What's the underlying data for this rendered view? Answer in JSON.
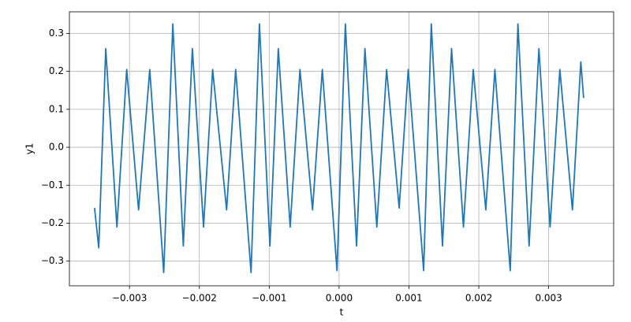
{
  "chart_data": {
    "type": "line",
    "x_label": "t",
    "y_label": "y1",
    "x": [
      -0.0035,
      -0.00344,
      -0.00334,
      -0.00318,
      -0.00304,
      -0.00287,
      -0.00271,
      -0.00251,
      -0.00238,
      -0.00223,
      -0.0021,
      -0.00194,
      -0.00181,
      -0.00161,
      -0.00148,
      -0.00126,
      -0.00114,
      -0.00099,
      -0.00087,
      -0.0007,
      -0.00056,
      -0.00038,
      -0.00024,
      -3e-05,
      9e-05,
      0.00025,
      0.00037,
      0.00054,
      0.00068,
      0.00086,
      0.00099,
      0.00121,
      0.00132,
      0.00148,
      0.00161,
      0.00178,
      0.00192,
      0.0021,
      0.00223,
      0.00245,
      0.00256,
      0.00272,
      0.00286,
      0.00302,
      0.00316,
      0.00334,
      0.00346,
      0.0035
    ],
    "series": [
      {
        "name": "y1",
        "color": "#1f77b4",
        "values": [
          -0.16,
          -0.265,
          0.26,
          -0.21,
          0.205,
          -0.165,
          0.205,
          -0.33,
          0.325,
          -0.26,
          0.26,
          -0.21,
          0.205,
          -0.165,
          0.205,
          -0.33,
          0.325,
          -0.26,
          0.26,
          -0.21,
          0.205,
          -0.165,
          0.205,
          -0.325,
          0.325,
          -0.26,
          0.26,
          -0.21,
          0.205,
          -0.16,
          0.205,
          -0.325,
          0.325,
          -0.26,
          0.26,
          -0.21,
          0.205,
          -0.165,
          0.205,
          -0.325,
          0.325,
          -0.26,
          0.26,
          -0.21,
          0.205,
          -0.165,
          0.225,
          0.13
        ]
      }
    ],
    "xlim": [
      -0.00386,
      0.00393
    ],
    "ylim": [
      -0.365,
      0.357
    ],
    "xticks": [
      {
        "value": -0.003,
        "label": "−0.003"
      },
      {
        "value": -0.002,
        "label": "−0.002"
      },
      {
        "value": -0.001,
        "label": "−0.001"
      },
      {
        "value": 0,
        "label": "0.000"
      },
      {
        "value": 0.001,
        "label": "0.001"
      },
      {
        "value": 0.002,
        "label": "0.002"
      },
      {
        "value": 0.003,
        "label": "0.003"
      }
    ],
    "yticks": [
      {
        "value": -0.3,
        "label": "−0.3"
      },
      {
        "value": -0.2,
        "label": "−0.2"
      },
      {
        "value": -0.1,
        "label": "−0.1"
      },
      {
        "value": 0,
        "label": "0.0"
      },
      {
        "value": 0.1,
        "label": "0.1"
      },
      {
        "value": 0.2,
        "label": "0.2"
      },
      {
        "value": 0.3,
        "label": "0.3"
      }
    ],
    "grid": true
  }
}
